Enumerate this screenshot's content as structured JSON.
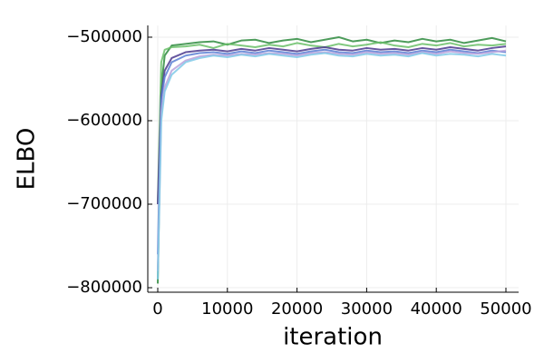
{
  "chart_data": {
    "type": "line",
    "x_label": "iteration",
    "y_label": "ELBO",
    "x": [
      0,
      500,
      1000,
      2000,
      4000,
      6000,
      8000,
      10000,
      12000,
      14000,
      16000,
      18000,
      20000,
      22000,
      24000,
      26000,
      28000,
      30000,
      32000,
      34000,
      36000,
      38000,
      40000,
      42000,
      44000,
      46000,
      48000,
      50000
    ],
    "series": [
      {
        "color": "#2e8b3e",
        "values": [
          -795000,
          -560000,
          -522000,
          -510000,
          -508000,
          -506000,
          -505000,
          -509000,
          -504000,
          -503000,
          -507000,
          -504000,
          -502000,
          -506000,
          -503000,
          -500000,
          -505000,
          -503000,
          -507000,
          -504000,
          -506000,
          -502000,
          -505000,
          -503000,
          -507000,
          -504000,
          -501000,
          -505000
        ]
      },
      {
        "color": "#6abf69",
        "values": [
          -700000,
          -530000,
          -515000,
          -512000,
          -511000,
          -509000,
          -513000,
          -508000,
          -510000,
          -512000,
          -509000,
          -511000,
          -507000,
          -510000,
          -512000,
          -508000,
          -511000,
          -509000,
          -506000,
          -510000,
          -512000,
          -508000,
          -510000,
          -507000,
          -511000,
          -509000,
          -510000,
          -508000
        ]
      },
      {
        "color": "#4b3a8e",
        "values": [
          -700000,
          -570000,
          -540000,
          -525000,
          -518000,
          -516000,
          -515000,
          -517000,
          -514000,
          -516000,
          -513000,
          -515000,
          -517000,
          -514000,
          -512000,
          -515000,
          -516000,
          -513000,
          -515000,
          -514000,
          -516000,
          -513000,
          -515000,
          -512000,
          -514000,
          -516000,
          -513000,
          -511000
        ]
      },
      {
        "color": "#5b7fd4",
        "values": [
          -760000,
          -575000,
          -548000,
          -530000,
          -522000,
          -519000,
          -518000,
          -520000,
          -517000,
          -519000,
          -516000,
          -518000,
          -520000,
          -517000,
          -515000,
          -518000,
          -519000,
          -516000,
          -518000,
          -517000,
          -519000,
          -516000,
          -518000,
          -515000,
          -517000,
          -519000,
          -516000,
          -518000
        ]
      },
      {
        "color": "#b8a1dc",
        "values": [
          -780000,
          -590000,
          -560000,
          -540000,
          -528000,
          -523000,
          -521000,
          -522000,
          -520000,
          -521000,
          -519000,
          -520000,
          -522000,
          -519000,
          -518000,
          -520000,
          -521000,
          -518000,
          -520000,
          -519000,
          -521000,
          -518000,
          -520000,
          -517000,
          -519000,
          -520000,
          -518000,
          -516000
        ]
      },
      {
        "color": "#7fc9e8",
        "values": [
          -790000,
          -600000,
          -565000,
          -545000,
          -530000,
          -525000,
          -522000,
          -524000,
          -521000,
          -523000,
          -520000,
          -522000,
          -524000,
          -521000,
          -519000,
          -522000,
          -523000,
          -520000,
          -522000,
          -521000,
          -523000,
          -519000,
          -522000,
          -520000,
          -521000,
          -523000,
          -520000,
          -522000
        ]
      }
    ],
    "xlim": [
      -1432,
      51823
    ],
    "xticks": [
      0,
      10000,
      20000,
      30000,
      40000,
      50000
    ],
    "ylim": [
      -805400,
      -485900
    ],
    "yticks": [
      {
        "value": -800000,
        "label": "−800000"
      },
      {
        "value": -700000,
        "label": "−700000"
      },
      {
        "value": -600000,
        "label": "−600000"
      },
      {
        "value": -500000,
        "label": "−500000"
      }
    ],
    "grid": true
  }
}
